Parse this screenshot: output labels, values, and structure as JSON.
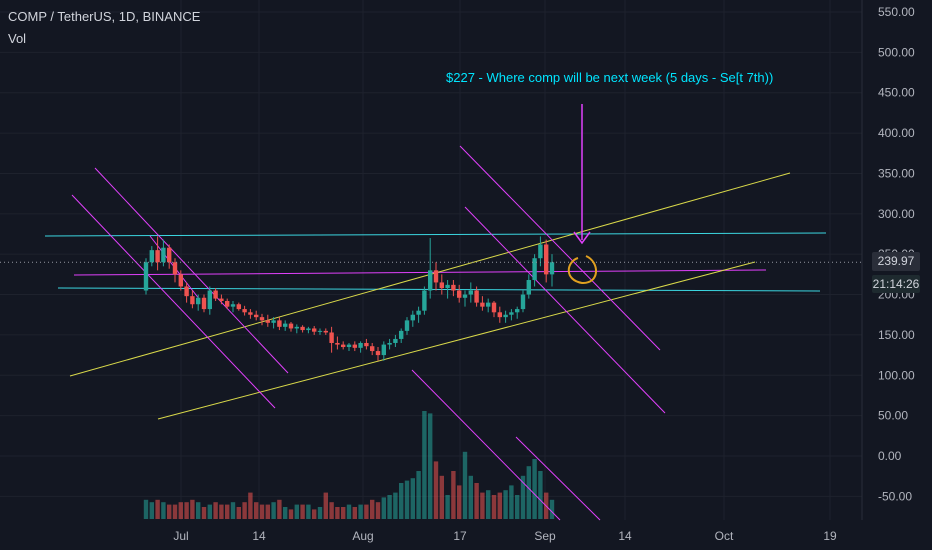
{
  "header": {
    "symbol": "COMP / TetherUS, 1D, BINANCE",
    "volume_label": "Vol"
  },
  "annotation": {
    "text": "$227 - Where comp will be next week (5 days - Se[t 7th))"
  },
  "price_badge": "239.97",
  "time_badge": "21:14:26",
  "colors": {
    "background": "#131722",
    "up": "#26a69a",
    "down": "#ef5350",
    "yellow_trend": "#d9d94a",
    "magenta": "#e040fb",
    "cyan": "#3bd6e0",
    "orange_circle": "#e0a020"
  },
  "chart_data": {
    "type": "candlestick",
    "title": "COMP / TetherUS, 1D, BINANCE",
    "y_axis_ticks": [
      "550.00",
      "500.00",
      "450.00",
      "400.00",
      "350.00",
      "300.00",
      "250.00",
      "200.00",
      "150.00",
      "100.00",
      "50.00",
      "0.00",
      "-50.00"
    ],
    "x_axis_ticks": [
      "Jul",
      "14",
      "Aug",
      "17",
      "Sep",
      "14",
      "Oct",
      "19"
    ],
    "ylim": [
      -70,
      560
    ],
    "series": [
      {
        "name": "price",
        "ohlc": [
          [
            205,
            245,
            200,
            240
          ],
          [
            240,
            260,
            235,
            255
          ],
          [
            255,
            272,
            230,
            240
          ],
          [
            240,
            268,
            235,
            258
          ],
          [
            258,
            262,
            232,
            240
          ],
          [
            240,
            245,
            215,
            225
          ],
          [
            225,
            230,
            205,
            210
          ],
          [
            210,
            215,
            190,
            198
          ],
          [
            198,
            205,
            183,
            188
          ],
          [
            188,
            200,
            180,
            196
          ],
          [
            196,
            200,
            178,
            182
          ],
          [
            182,
            210,
            175,
            205
          ],
          [
            205,
            208,
            192,
            195
          ],
          [
            195,
            200,
            188,
            192
          ],
          [
            192,
            195,
            182,
            185
          ],
          [
            185,
            192,
            178,
            188
          ],
          [
            188,
            190,
            180,
            182
          ],
          [
            182,
            186,
            174,
            178
          ],
          [
            178,
            182,
            170,
            175
          ],
          [
            175,
            180,
            168,
            172
          ],
          [
            172,
            176,
            162,
            168
          ],
          [
            168,
            175,
            160,
            165
          ],
          [
            165,
            172,
            158,
            168
          ],
          [
            168,
            172,
            156,
            160
          ],
          [
            160,
            168,
            155,
            164
          ],
          [
            164,
            166,
            154,
            158
          ],
          [
            158,
            163,
            152,
            160
          ],
          [
            160,
            162,
            153,
            156
          ],
          [
            156,
            160,
            152,
            158
          ],
          [
            158,
            161,
            150,
            154
          ],
          [
            154,
            158,
            150,
            155
          ],
          [
            155,
            158,
            150,
            153
          ],
          [
            153,
            160,
            128,
            140
          ],
          [
            140,
            148,
            132,
            138
          ],
          [
            138,
            142,
            132,
            135
          ],
          [
            135,
            140,
            130,
            138
          ],
          [
            138,
            142,
            130,
            134
          ],
          [
            134,
            142,
            128,
            140
          ],
          [
            140,
            145,
            132,
            136
          ],
          [
            136,
            140,
            125,
            130
          ],
          [
            130,
            135,
            118,
            125
          ],
          [
            125,
            142,
            118,
            138
          ],
          [
            138,
            145,
            132,
            140
          ],
          [
            140,
            150,
            135,
            145
          ],
          [
            145,
            158,
            140,
            155
          ],
          [
            155,
            172,
            150,
            168
          ],
          [
            168,
            180,
            160,
            175
          ],
          [
            175,
            185,
            165,
            180
          ],
          [
            180,
            210,
            175,
            205
          ],
          [
            205,
            270,
            195,
            230
          ],
          [
            230,
            240,
            205,
            215
          ],
          [
            215,
            225,
            200,
            208
          ],
          [
            208,
            218,
            195,
            212
          ],
          [
            212,
            218,
            198,
            205
          ],
          [
            205,
            212,
            190,
            196
          ],
          [
            196,
            205,
            185,
            200
          ],
          [
            200,
            215,
            190,
            205
          ],
          [
            205,
            210,
            185,
            190
          ],
          [
            190,
            198,
            180,
            185
          ],
          [
            185,
            195,
            178,
            190
          ],
          [
            190,
            192,
            172,
            178
          ],
          [
            178,
            185,
            165,
            172
          ],
          [
            172,
            180,
            165,
            175
          ],
          [
            175,
            182,
            168,
            178
          ],
          [
            178,
            185,
            170,
            182
          ],
          [
            182,
            205,
            178,
            200
          ],
          [
            200,
            225,
            195,
            218
          ],
          [
            218,
            250,
            210,
            245
          ],
          [
            245,
            272,
            235,
            262
          ],
          [
            262,
            268,
            215,
            225
          ],
          [
            225,
            250,
            210,
            240
          ]
        ]
      },
      {
        "name": "Vol",
        "values": [
          8,
          7,
          8,
          7,
          6,
          6,
          7,
          7,
          8,
          7,
          5,
          6,
          7,
          6,
          6,
          7,
          5,
          7,
          11,
          7,
          6,
          6,
          7,
          8,
          5,
          4,
          6,
          6,
          6,
          4,
          5,
          11,
          7,
          5,
          5,
          6,
          5,
          6,
          6,
          8,
          7,
          9,
          10,
          11,
          15,
          16,
          17,
          20,
          45,
          44,
          24,
          18,
          10,
          20,
          14,
          28,
          18,
          15,
          11,
          12,
          10,
          11,
          12,
          14,
          10,
          18,
          22,
          25,
          20,
          11,
          8
        ]
      }
    ]
  }
}
